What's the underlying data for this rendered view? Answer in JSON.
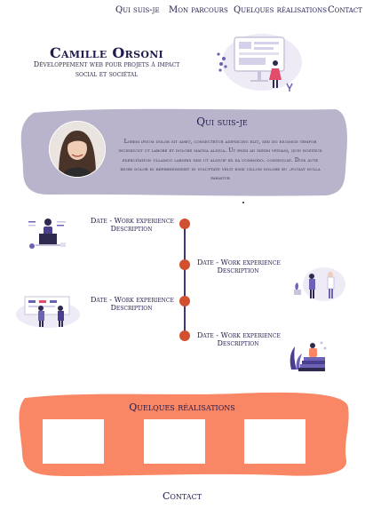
{
  "nav": {
    "items": [
      "Qui suis-je",
      "Mon parcours",
      "Quelques réalisations",
      "Contact"
    ]
  },
  "hero": {
    "name": "Camille Orsoni",
    "subtitle_line1": "Développement web pour projets à impact",
    "subtitle_line2": "social et sociétal"
  },
  "about": {
    "title": "Qui suis-je",
    "text": "Lorem ipsum dolor sit amet, consectetur adipiscing elit, sed do eiusmod tempor incididunt ut labore et dolore magna aliqua. Ut enim ad minim veniam, quis nostrud exercitation ullamco laboris nisi ut aliquip ex ea commodo. consequat. Duis aute irure dolor in reprehenderit in voluptate velit esse cillum dolore eu .fugiat nulla pariatur"
  },
  "timeline": {
    "items": [
      {
        "date": "Date - Work experience",
        "description": "Description"
      },
      {
        "date": "Date - Work experience",
        "description": "Description"
      },
      {
        "date": "Date - Work experience",
        "description": "Description"
      },
      {
        "date": "Date - Work experience",
        "description": "Description"
      }
    ]
  },
  "realisations": {
    "title": "Quelques réalisations"
  },
  "contact": {
    "label": "Contact"
  },
  "colors": {
    "navy": "#1f1b4d",
    "lavender": "#b9b4cb",
    "orange": "#f98665",
    "timeline_dot": "#d0502f"
  }
}
